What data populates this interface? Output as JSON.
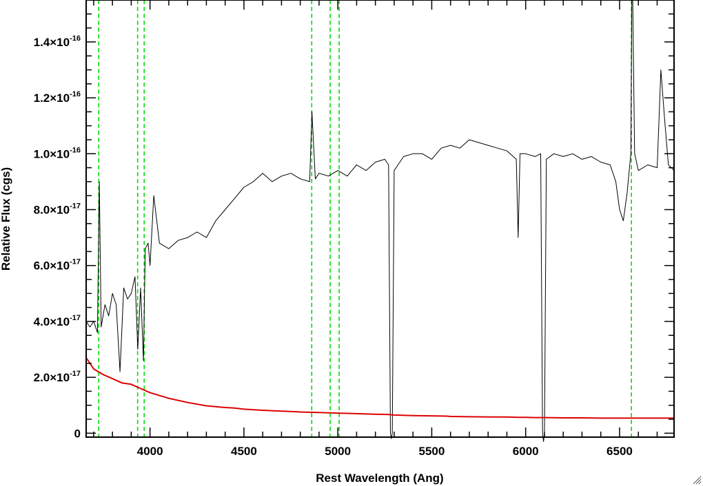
{
  "chart_data": {
    "type": "line",
    "title": "",
    "xlabel": "Rest Wavelength (Ang)",
    "ylabel": "Relative Flux (cgs)",
    "xlim": [
      3660,
      6790
    ],
    "ylim": [
      -1.4e-18,
      1.55e-16
    ],
    "x_ticks": [
      {
        "value": 4000,
        "label": "4000"
      },
      {
        "value": 4500,
        "label": "4500"
      },
      {
        "value": 5000,
        "label": "5000"
      },
      {
        "value": 5500,
        "label": "5500"
      },
      {
        "value": 6000,
        "label": "6000"
      },
      {
        "value": 6500,
        "label": "6500"
      }
    ],
    "y_ticks": [
      {
        "value": 0,
        "mantissa": "0",
        "exponent": ""
      },
      {
        "value": 2e-17,
        "mantissa": "2.0×10",
        "exponent": "-17"
      },
      {
        "value": 4e-17,
        "mantissa": "4.0×10",
        "exponent": "-17"
      },
      {
        "value": 6e-17,
        "mantissa": "6.0×10",
        "exponent": "-17"
      },
      {
        "value": 8e-17,
        "mantissa": "8.0×10",
        "exponent": "-17"
      },
      {
        "value": 1e-16,
        "mantissa": "1.0×10",
        "exponent": "-16"
      },
      {
        "value": 1.2e-16,
        "mantissa": "1.2×10",
        "exponent": "-16"
      },
      {
        "value": 1.4e-16,
        "mantissa": "1.4×10",
        "exponent": "-16"
      }
    ],
    "grid": false,
    "vertical_lines": {
      "color": "#00dd00",
      "style": "dashed",
      "x": [
        3727,
        3934,
        3969,
        4861,
        4959,
        5007,
        6563
      ]
    },
    "series": [
      {
        "color": "#000000",
        "x": [
          3660,
          3680,
          3700,
          3720,
          3730,
          3740,
          3760,
          3780,
          3800,
          3820,
          3840,
          3860,
          3880,
          3900,
          3920,
          3935,
          3950,
          3965,
          3975,
          3990,
          4000,
          4020,
          4050,
          4100,
          4150,
          4200,
          4250,
          4300,
          4350,
          4400,
          4450,
          4500,
          4550,
          4600,
          4650,
          4700,
          4750,
          4800,
          4850,
          4862,
          4880,
          4900,
          4950,
          5000,
          5050,
          5100,
          5150,
          5200,
          5250,
          5270,
          5280,
          5285,
          5290,
          5300,
          5320,
          5350,
          5400,
          5450,
          5500,
          5550,
          5600,
          5650,
          5700,
          5750,
          5800,
          5850,
          5900,
          5950,
          5960,
          5970,
          6000,
          6050,
          6080,
          6090,
          6095,
          6100,
          6110,
          6150,
          6200,
          6250,
          6300,
          6350,
          6400,
          6450,
          6480,
          6500,
          6520,
          6540,
          6560,
          6565,
          6570,
          6580,
          6600,
          6650,
          6700,
          6720,
          6740,
          6760,
          6790
        ],
        "values": [
          4e-17,
          3.8e-17,
          4e-17,
          3.6e-17,
          9e-17,
          3.8e-17,
          4.6e-17,
          4.2e-17,
          5e-17,
          4.6e-17,
          2.2e-17,
          5.2e-17,
          4.8e-17,
          5e-17,
          5.6e-17,
          3e-17,
          5.2e-17,
          2.6e-17,
          6.6e-17,
          6.8e-17,
          6e-17,
          8.5e-17,
          6.8e-17,
          6.6e-17,
          6.9e-17,
          7e-17,
          7.2e-17,
          7e-17,
          7.6e-17,
          8e-17,
          8.4e-17,
          8.8e-17,
          9e-17,
          9.3e-17,
          9e-17,
          9.2e-17,
          9.3e-17,
          9.1e-17,
          9e-17,
          1.15e-16,
          9.1e-17,
          9.3e-17,
          9.2e-17,
          9.4e-17,
          9.2e-17,
          9.6e-17,
          9.4e-17,
          9.7e-17,
          9.8e-17,
          9.6e-17,
          0,
          -2e-18,
          0,
          9.4e-17,
          9.6e-17,
          9.9e-17,
          1e-16,
          1e-16,
          9.8e-17,
          1.02e-16,
          1.03e-16,
          1.02e-16,
          1.05e-16,
          1.04e-16,
          1.03e-16,
          1.02e-16,
          1.01e-16,
          9.8e-17,
          7e-17,
          1e-16,
          1e-16,
          9.9e-17,
          1e-16,
          0,
          -3e-18,
          0,
          9.8e-17,
          1e-16,
          9.9e-17,
          1e-16,
          9.8e-17,
          9.9e-17,
          9.7e-17,
          9.6e-17,
          9e-17,
          8e-17,
          7.6e-17,
          8.6e-17,
          1e-16,
          1.55e-16,
          1.55e-16,
          1e-16,
          9.4e-17,
          9.6e-17,
          9.5e-17,
          1.3e-16,
          1.12e-16,
          9.6e-17,
          9.4e-17
        ]
      },
      {
        "color": "#dd0000",
        "x": [
          3660,
          3680,
          3700,
          3750,
          3800,
          3850,
          3900,
          3950,
          4000,
          4100,
          4200,
          4300,
          4400,
          4450,
          4500,
          4600,
          4700,
          4780,
          4800,
          4900,
          5000,
          5100,
          5200,
          5270,
          5285,
          5300,
          5400,
          5500,
          5580,
          5600,
          5700,
          5820,
          5900,
          5960,
          6000,
          6050,
          6095,
          6110,
          6200,
          6240,
          6300,
          6400,
          6460,
          6500,
          6600,
          6700,
          6790
        ],
        "values": [
          2.7e-17,
          2.5e-17,
          2.3e-17,
          2.1e-17,
          1.95e-17,
          1.8e-17,
          1.75e-17,
          1.6e-17,
          1.45e-17,
          1.25e-17,
          1.1e-17,
          9.8e-18,
          9.2e-18,
          9e-18,
          8.6e-18,
          8.2e-18,
          7.9e-18,
          7.7e-18,
          7.6e-18,
          7.4e-18,
          7.2e-18,
          7e-18,
          6.8e-18,
          6.7e-18,
          6.6e-18,
          6.5e-18,
          6.3e-18,
          6.2e-18,
          6.1e-18,
          6e-18,
          5.9e-18,
          5.8e-18,
          5.8e-18,
          5.7e-18,
          5.7e-18,
          5.6e-18,
          5.6e-18,
          5.6e-18,
          5.5e-18,
          5.5e-18,
          5.5e-18,
          5.4e-18,
          5.4e-18,
          5.4e-18,
          5.4e-18,
          5.4e-18,
          5.4e-18
        ]
      }
    ]
  }
}
